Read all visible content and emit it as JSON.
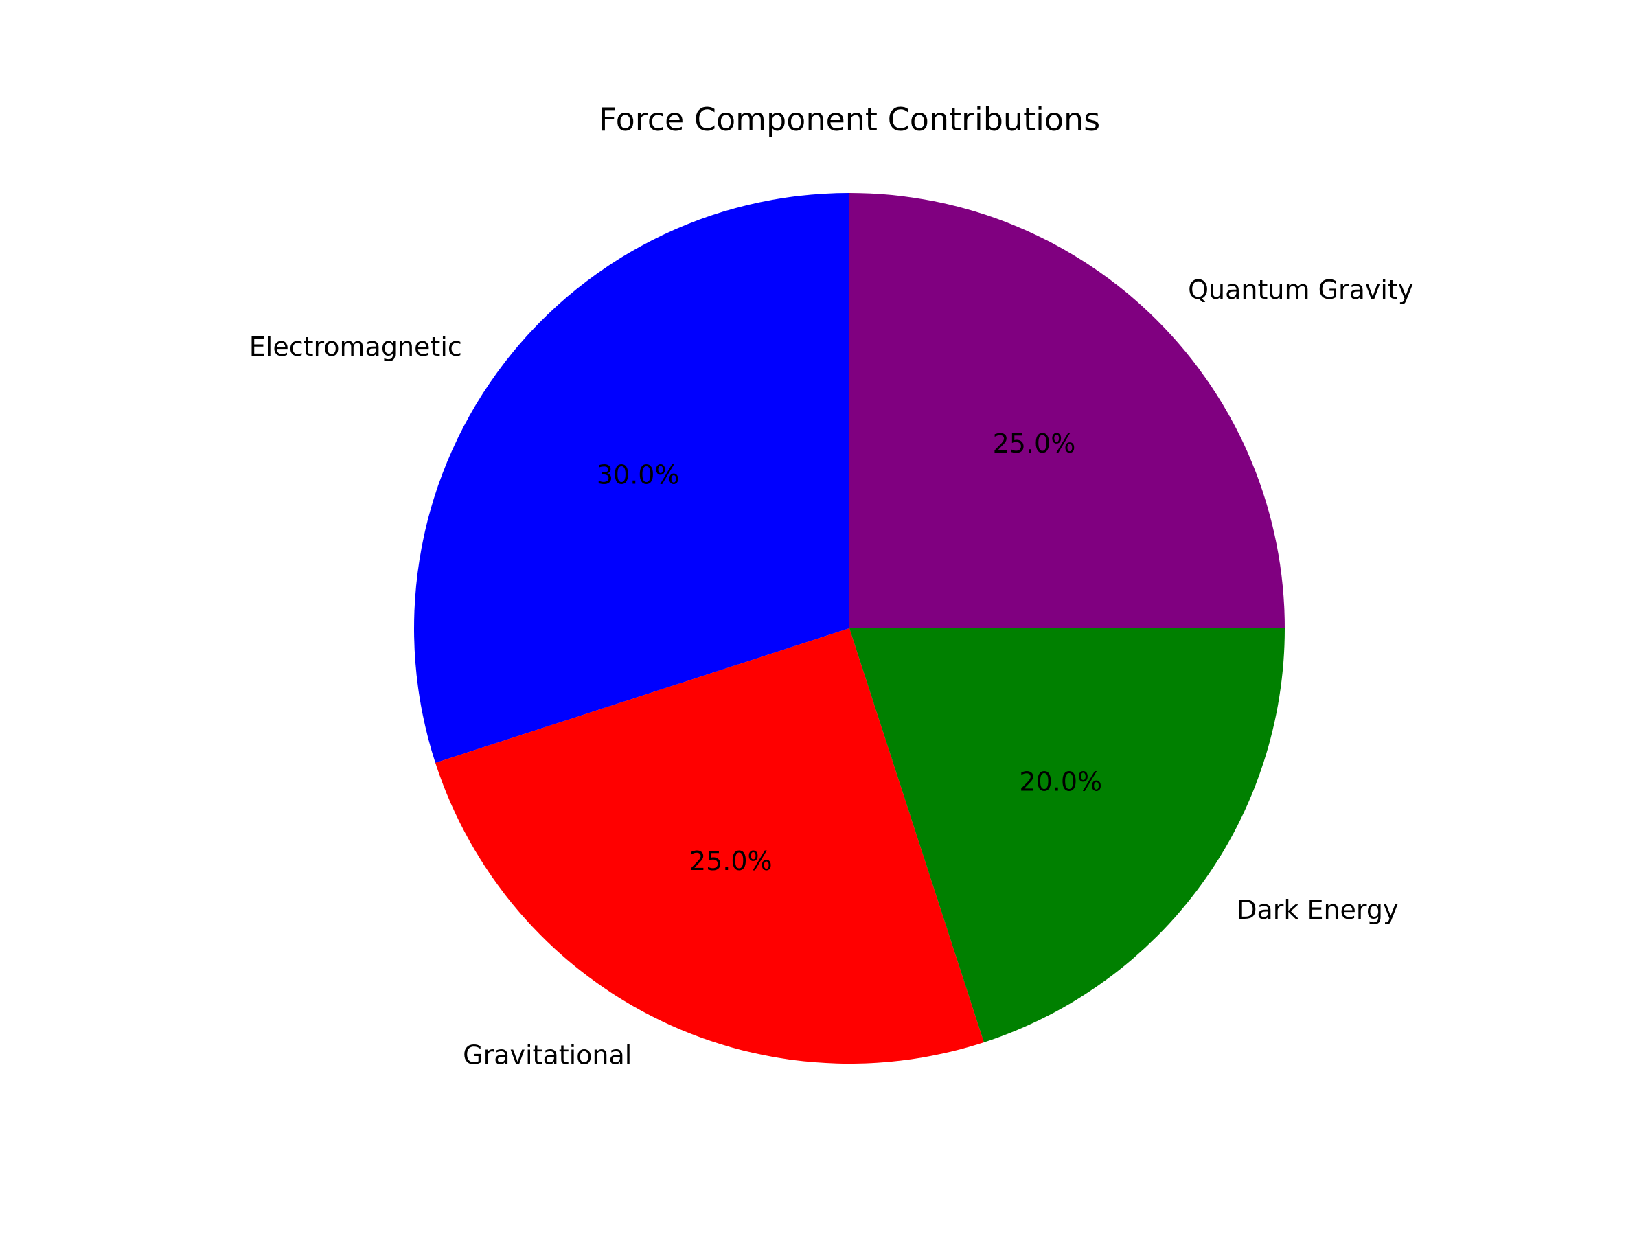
{
  "chart_data": {
    "type": "pie",
    "title": "Force Component Contributions",
    "categories": [
      "Electromagnetic",
      "Gravitational",
      "Dark Energy",
      "Quantum Gravity"
    ],
    "values": [
      30.0,
      25.0,
      20.0,
      25.0
    ],
    "percent_labels": [
      "30.0%",
      "25.0%",
      "20.0%",
      "25.0%"
    ],
    "colors": [
      "#0000ff",
      "#ff0000",
      "#008000",
      "#800080"
    ],
    "start_angle_deg": 90,
    "direction": "counterclockwise",
    "legend": "none"
  }
}
